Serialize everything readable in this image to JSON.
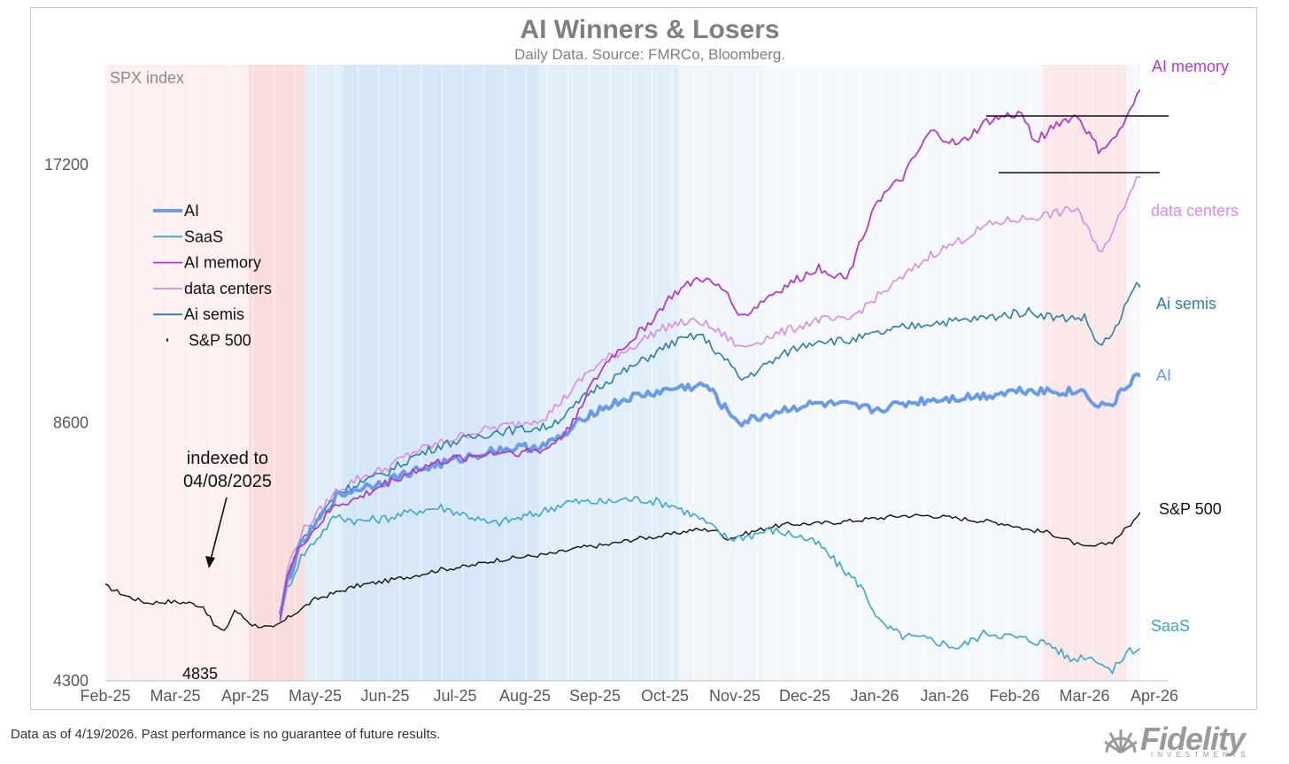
{
  "chart_data": {
    "type": "line",
    "title": "AI Winners & Losers",
    "subtitle": "Daily Data.  Source: FMRCo, Bloomberg.",
    "ylabel": "SPX index",
    "y_scale": "log",
    "ylim": [
      4300,
      22500
    ],
    "y_ticks": [
      "17200",
      "8600",
      "4300"
    ],
    "x_ticks": [
      "Feb-25",
      "Mar-25",
      "Apr-25",
      "May-25",
      "Jun-25",
      "Jul-25",
      "Aug-25",
      "Sep-25",
      "Oct-25",
      "Nov-25",
      "Dec-25",
      "Jan-26",
      "Jan-26",
      "Feb-26",
      "Mar-26",
      "Apr-26"
    ],
    "grid": false,
    "legend_position": "left",
    "annotations": {
      "index_note_line1": "indexed to",
      "index_note_line2": "04/08/2025",
      "low_value": "4835"
    },
    "x": [
      "Feb-25",
      "Mar-25",
      "Apr-25",
      "May-25",
      "Jun-25",
      "Jul-25",
      "Aug-25",
      "Sep-25",
      "Oct-25",
      "Nov-25",
      "Dec-25",
      "Jan-26",
      "Jan-26",
      "Feb-26",
      "Mar-26",
      "Apr-26"
    ],
    "series": [
      {
        "name": "AI",
        "color": "#6a9be6",
        "points": [
          [
            2.5,
            5100
          ],
          [
            2.6,
            5600
          ],
          [
            2.8,
            6200
          ],
          [
            3.3,
            7050
          ],
          [
            3.6,
            7200
          ],
          [
            4.0,
            7350
          ],
          [
            4.4,
            7550
          ],
          [
            4.8,
            7700
          ],
          [
            5.2,
            7850
          ],
          [
            5.6,
            8000
          ],
          [
            6.0,
            8050
          ],
          [
            6.3,
            8100
          ],
          [
            6.6,
            8350
          ],
          [
            6.9,
            8800
          ],
          [
            7.2,
            9000
          ],
          [
            7.5,
            9200
          ],
          [
            7.8,
            9300
          ],
          [
            8.2,
            9450
          ],
          [
            8.6,
            9500
          ],
          [
            8.9,
            8850
          ],
          [
            9.1,
            8600
          ],
          [
            9.5,
            8800
          ],
          [
            9.8,
            8950
          ],
          [
            10.2,
            9050
          ],
          [
            10.6,
            9000
          ],
          [
            11.0,
            8900
          ],
          [
            11.4,
            9050
          ],
          [
            11.8,
            9150
          ],
          [
            12.2,
            9200
          ],
          [
            12.6,
            9250
          ],
          [
            12.9,
            9350
          ],
          [
            13.2,
            9400
          ],
          [
            13.6,
            9350
          ],
          [
            14.0,
            9350
          ],
          [
            14.2,
            9000
          ],
          [
            14.4,
            9050
          ],
          [
            14.7,
            9700
          ],
          [
            14.98,
            10000
          ]
        ]
      },
      {
        "name": "SaaS",
        "color": "#3aa6cf",
        "points": [
          [
            2.5,
            5100
          ],
          [
            2.6,
            5500
          ],
          [
            2.8,
            6000
          ],
          [
            3.3,
            6700
          ],
          [
            3.6,
            6600
          ],
          [
            4.0,
            6650
          ],
          [
            4.5,
            6800
          ],
          [
            4.8,
            6850
          ],
          [
            5.2,
            6700
          ],
          [
            5.5,
            6550
          ],
          [
            5.9,
            6650
          ],
          [
            6.2,
            6750
          ],
          [
            6.6,
            6950
          ],
          [
            6.9,
            6950
          ],
          [
            7.2,
            6950
          ],
          [
            7.4,
            7000
          ],
          [
            7.7,
            7000
          ],
          [
            8.1,
            6900
          ],
          [
            8.5,
            6650
          ],
          [
            8.9,
            6300
          ],
          [
            9.2,
            6350
          ],
          [
            9.5,
            6450
          ],
          [
            9.9,
            6350
          ],
          [
            10.2,
            6200
          ],
          [
            10.5,
            5850
          ],
          [
            10.8,
            5550
          ],
          [
            11.1,
            5000
          ],
          [
            11.4,
            4850
          ],
          [
            11.8,
            4800
          ],
          [
            12.2,
            4700
          ],
          [
            12.6,
            4900
          ],
          [
            12.9,
            4850
          ],
          [
            13.2,
            4800
          ],
          [
            13.5,
            4750
          ],
          [
            13.8,
            4550
          ],
          [
            14.0,
            4600
          ],
          [
            14.2,
            4550
          ],
          [
            14.4,
            4400
          ],
          [
            14.6,
            4650
          ],
          [
            14.98,
            4750
          ]
        ]
      },
      {
        "name": "AI memory",
        "color": "#b13bc7",
        "points": [
          [
            2.5,
            5100
          ],
          [
            2.6,
            5700
          ],
          [
            2.8,
            6200
          ],
          [
            3.3,
            6900
          ],
          [
            3.6,
            7000
          ],
          [
            4.0,
            7300
          ],
          [
            4.4,
            7550
          ],
          [
            4.8,
            7750
          ],
          [
            5.2,
            7850
          ],
          [
            5.6,
            7950
          ],
          [
            6.0,
            7950
          ],
          [
            6.3,
            8000
          ],
          [
            6.6,
            8400
          ],
          [
            6.9,
            9350
          ],
          [
            7.2,
            10200
          ],
          [
            7.5,
            10700
          ],
          [
            7.8,
            11300
          ],
          [
            8.1,
            12100
          ],
          [
            8.5,
            12700
          ],
          [
            8.9,
            12200
          ],
          [
            9.1,
            11400
          ],
          [
            9.5,
            12100
          ],
          [
            9.8,
            12500
          ],
          [
            10.2,
            13050
          ],
          [
            10.6,
            12650
          ],
          [
            11.0,
            15500
          ],
          [
            11.4,
            16600
          ],
          [
            11.8,
            18800
          ],
          [
            12.2,
            18100
          ],
          [
            12.6,
            19300
          ],
          [
            12.9,
            19600
          ],
          [
            13.1,
            19700
          ],
          [
            13.3,
            18300
          ],
          [
            13.6,
            19200
          ],
          [
            13.9,
            19600
          ],
          [
            14.2,
            17900
          ],
          [
            14.4,
            18300
          ],
          [
            14.6,
            19400
          ],
          [
            14.8,
            21000
          ],
          [
            14.98,
            21600
          ]
        ]
      },
      {
        "name": "data centers",
        "color": "#d98be3",
        "points": [
          [
            2.5,
            5100
          ],
          [
            2.6,
            5800
          ],
          [
            2.8,
            6400
          ],
          [
            3.3,
            7150
          ],
          [
            3.6,
            7400
          ],
          [
            4.0,
            7600
          ],
          [
            4.4,
            7950
          ],
          [
            4.8,
            8150
          ],
          [
            5.2,
            8350
          ],
          [
            5.6,
            8500
          ],
          [
            6.0,
            8600
          ],
          [
            6.3,
            8750
          ],
          [
            6.6,
            9250
          ],
          [
            6.9,
            9850
          ],
          [
            7.2,
            10250
          ],
          [
            7.5,
            10500
          ],
          [
            7.8,
            10900
          ],
          [
            8.1,
            11200
          ],
          [
            8.5,
            11300
          ],
          [
            8.9,
            10800
          ],
          [
            9.1,
            10500
          ],
          [
            9.5,
            10850
          ],
          [
            9.8,
            11050
          ],
          [
            10.2,
            11350
          ],
          [
            10.6,
            11300
          ],
          [
            11.0,
            12000
          ],
          [
            11.4,
            12700
          ],
          [
            11.8,
            13500
          ],
          [
            12.2,
            14000
          ],
          [
            12.6,
            14600
          ],
          [
            12.9,
            14800
          ],
          [
            13.2,
            14900
          ],
          [
            13.6,
            15100
          ],
          [
            13.9,
            15300
          ],
          [
            14.2,
            13600
          ],
          [
            14.4,
            14300
          ],
          [
            14.7,
            16400
          ],
          [
            14.98,
            17500
          ]
        ]
      },
      {
        "name": "Ai semis",
        "color": "#2e7ea6",
        "points": [
          [
            2.5,
            5100
          ],
          [
            2.6,
            5650
          ],
          [
            2.8,
            6250
          ],
          [
            3.3,
            7100
          ],
          [
            3.6,
            7300
          ],
          [
            4.0,
            7500
          ],
          [
            4.4,
            7850
          ],
          [
            4.8,
            8100
          ],
          [
            5.2,
            8250
          ],
          [
            5.6,
            8400
          ],
          [
            6.0,
            8450
          ],
          [
            6.3,
            8500
          ],
          [
            6.6,
            8800
          ],
          [
            6.9,
            9300
          ],
          [
            7.2,
            9650
          ],
          [
            7.5,
            9950
          ],
          [
            7.8,
            10300
          ],
          [
            8.1,
            10650
          ],
          [
            8.5,
            10900
          ],
          [
            8.9,
            10100
          ],
          [
            9.1,
            9650
          ],
          [
            9.5,
            10100
          ],
          [
            9.8,
            10450
          ],
          [
            10.2,
            10750
          ],
          [
            10.6,
            10700
          ],
          [
            11.0,
            10900
          ],
          [
            11.4,
            11100
          ],
          [
            11.8,
            11250
          ],
          [
            12.2,
            11300
          ],
          [
            12.6,
            11400
          ],
          [
            12.9,
            11500
          ],
          [
            13.2,
            11600
          ],
          [
            13.6,
            11400
          ],
          [
            14.0,
            11400
          ],
          [
            14.2,
            10600
          ],
          [
            14.4,
            10850
          ],
          [
            14.7,
            12300
          ],
          [
            14.98,
            13000
          ]
        ]
      },
      {
        "name": "S&P 500",
        "color": "#111111",
        "points": [
          [
            0.0,
            5550
          ],
          [
            0.3,
            5400
          ],
          [
            0.6,
            5300
          ],
          [
            0.9,
            5320
          ],
          [
            1.2,
            5300
          ],
          [
            1.4,
            5250
          ],
          [
            1.55,
            5000
          ],
          [
            1.7,
            4900
          ],
          [
            1.85,
            5200
          ],
          [
            2.1,
            5000
          ],
          [
            2.4,
            4950
          ],
          [
            2.7,
            5150
          ],
          [
            3.0,
            5350
          ],
          [
            3.3,
            5450
          ],
          [
            3.6,
            5550
          ],
          [
            4.0,
            5620
          ],
          [
            4.4,
            5700
          ],
          [
            4.8,
            5800
          ],
          [
            5.2,
            5850
          ],
          [
            5.6,
            5950
          ],
          [
            6.0,
            6000
          ],
          [
            6.4,
            6050
          ],
          [
            6.8,
            6150
          ],
          [
            7.2,
            6200
          ],
          [
            7.6,
            6300
          ],
          [
            8.0,
            6350
          ],
          [
            8.4,
            6450
          ],
          [
            8.7,
            6450
          ],
          [
            8.9,
            6300
          ],
          [
            9.2,
            6400
          ],
          [
            9.5,
            6500
          ],
          [
            9.8,
            6550
          ],
          [
            10.2,
            6560
          ],
          [
            10.6,
            6600
          ],
          [
            11.0,
            6650
          ],
          [
            11.4,
            6700
          ],
          [
            11.8,
            6700
          ],
          [
            12.2,
            6650
          ],
          [
            12.6,
            6600
          ],
          [
            12.9,
            6550
          ],
          [
            13.2,
            6450
          ],
          [
            13.5,
            6400
          ],
          [
            13.8,
            6250
          ],
          [
            14.0,
            6150
          ],
          [
            14.2,
            6180
          ],
          [
            14.4,
            6250
          ],
          [
            14.7,
            6600
          ],
          [
            14.98,
            6950
          ]
        ]
      }
    ]
  },
  "footnote": "Data as of 4/19/2026. Past performance is no guarantee of future results.",
  "logo": {
    "word": "Fidelity",
    "sub": "INVESTMENTS"
  }
}
